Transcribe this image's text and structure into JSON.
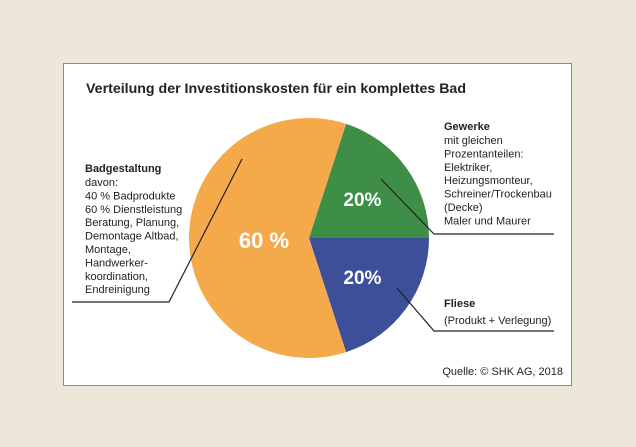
{
  "chart_data": {
    "type": "pie",
    "title": "Verteilung der Investitionskosten für ein komplettes Bad",
    "slices": [
      {
        "label": "Badgestaltung",
        "value": 60,
        "value_label": "60 %",
        "color": "#f4a94a"
      },
      {
        "label": "Gewerke",
        "value": 20,
        "value_label": "20%",
        "color": "#3e8e48"
      },
      {
        "label": "Fliese",
        "value": 20,
        "value_label": "20%",
        "color": "#3d4f98"
      }
    ],
    "annotations": {
      "badgestaltung": {
        "title": "Badgestaltung",
        "lines": [
          "davon:",
          "40 % Badprodukte",
          "60 % Dienstleistung",
          "Beratung, Planung,",
          "Demontage Altbad,",
          "Montage,",
          "Handwerker-",
          "koordination,",
          "Endreinigung"
        ]
      },
      "gewerke": {
        "title": "Gewerke",
        "lines": [
          "mit gleichen",
          "Prozentanteilen:",
          "Elektriker,",
          "Heizungsmonteur,",
          "Schreiner/Trockenbau",
          "(Decke)",
          "Maler und Maurer"
        ]
      },
      "fliese": {
        "title": "Fliese",
        "lines": [
          "(Produkt + Verlegung)"
        ]
      }
    },
    "source": "Quelle: © SHK AG, 2018"
  }
}
